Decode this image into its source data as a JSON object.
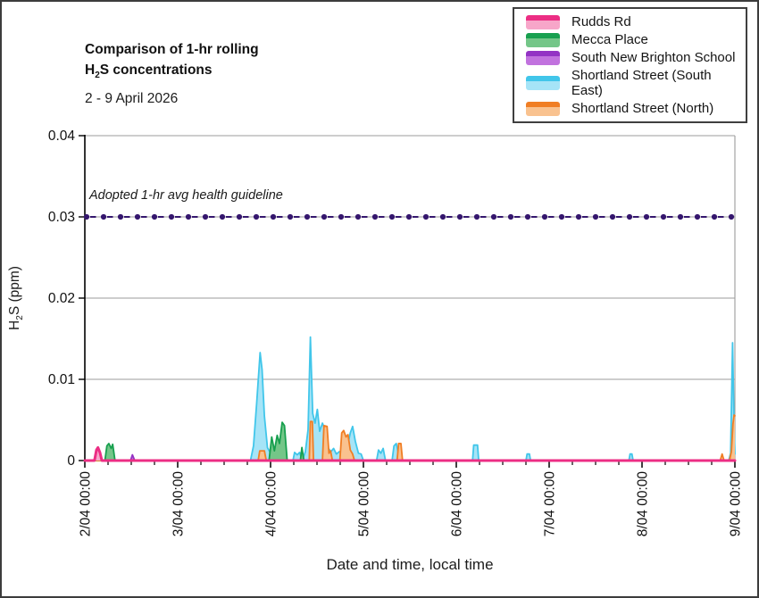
{
  "header": {
    "title_line1": "Comparison of 1-hr rolling",
    "title_line2_pre": "H",
    "title_line2_sub": "2",
    "title_line2_post": "S concentrations",
    "subtitle": "2 - 9 April 2026"
  },
  "chart_data": {
    "type": "area",
    "x_axis": {
      "title": "Date and time, local time",
      "range_hours": [
        0,
        168
      ],
      "major_step_hours": 24,
      "minor_step_hours": 6,
      "ticks": [
        {
          "h": 0,
          "label": "2/04 00:00"
        },
        {
          "h": 24,
          "label": "3/04 00:00"
        },
        {
          "h": 48,
          "label": "4/04 00:00"
        },
        {
          "h": 72,
          "label": "5/04 00:00"
        },
        {
          "h": 96,
          "label": "6/04 00:00"
        },
        {
          "h": 120,
          "label": "7/04 00:00"
        },
        {
          "h": 144,
          "label": "8/04 00:00"
        },
        {
          "h": 168,
          "label": "9/04 00:00"
        }
      ]
    },
    "y_axis": {
      "title_pre": "H",
      "title_sub": "2",
      "title_post": "S (ppm)",
      "range": [
        0,
        0.04
      ],
      "grid": true,
      "grid_color": "#9b9b9b",
      "ticks": [
        {
          "v": 0,
          "label": "0"
        },
        {
          "v": 0.01,
          "label": "0.01"
        },
        {
          "v": 0.02,
          "label": "0.02"
        },
        {
          "v": 0.03,
          "label": "0.03"
        },
        {
          "v": 0.04,
          "label": "0.04"
        }
      ]
    },
    "guideline": {
      "value": 0.03,
      "label": "Adopted 1-hr avg health guideline",
      "color": "#35176E",
      "style": "dashed-with-dot-markers"
    },
    "legend_position": "top-right",
    "series": [
      {
        "name": "Rudds Rd",
        "id": "rudds-rd",
        "line_color": "#EC2E84",
        "fill_color": "#F7A6C9",
        "z": 5,
        "stroke_width": 3,
        "points_h_ppm": [
          [
            0,
            0
          ],
          [
            2.5,
            0
          ],
          [
            3.0,
            0.0013
          ],
          [
            3.4,
            0.0016
          ],
          [
            3.9,
            0.001
          ],
          [
            4.4,
            0
          ],
          [
            168,
            0
          ]
        ]
      },
      {
        "name": "Mecca Place",
        "id": "mecca-place",
        "line_color": "#18A04F",
        "fill_color": "#74C688",
        "z": 3,
        "stroke_width": 1.8,
        "points_h_ppm": [
          [
            0,
            0
          ],
          [
            5.2,
            0
          ],
          [
            5.7,
            0.0018
          ],
          [
            6.2,
            0.0021
          ],
          [
            6.8,
            0.0015
          ],
          [
            7.2,
            0.002
          ],
          [
            7.8,
            0
          ],
          [
            47.6,
            0
          ],
          [
            48.3,
            0.0029
          ],
          [
            49.0,
            0.0012
          ],
          [
            49.7,
            0.0031
          ],
          [
            50.3,
            0.0021
          ],
          [
            51.0,
            0.0047
          ],
          [
            51.6,
            0.0043
          ],
          [
            52.3,
            0
          ],
          [
            55.7,
            0
          ],
          [
            56.1,
            0.0016
          ],
          [
            56.6,
            0
          ],
          [
            168,
            0
          ]
        ]
      },
      {
        "name": "South New Brighton School",
        "id": "south-new-brighton-school",
        "line_color": "#9333C4",
        "fill_color": "#C172DE",
        "z": 1,
        "stroke_width": 1.8,
        "points_h_ppm": [
          [
            0,
            0
          ],
          [
            11.8,
            0
          ],
          [
            12.3,
            0.0007
          ],
          [
            12.9,
            0
          ],
          [
            168,
            0
          ]
        ]
      },
      {
        "name": "Shortland Street (South East)",
        "id": "shortland-street-south-east",
        "line_color": "#41C6EA",
        "fill_color": "#A6E4F7",
        "z": 2,
        "stroke_width": 1.8,
        "points_h_ppm": [
          [
            0,
            0
          ],
          [
            42.8,
            0
          ],
          [
            43.6,
            0.0018
          ],
          [
            44.4,
            0.007
          ],
          [
            45.3,
            0.0133
          ],
          [
            45.8,
            0.0112
          ],
          [
            46.4,
            0.0055
          ],
          [
            47.2,
            0.0016
          ],
          [
            48.0,
            0.0009
          ],
          [
            48.5,
            0.0016
          ],
          [
            49.2,
            0
          ],
          [
            53.8,
            0
          ],
          [
            54.2,
            0.001
          ],
          [
            54.9,
            0.0007
          ],
          [
            55.5,
            0.001
          ],
          [
            56.2,
            0
          ],
          [
            57.0,
            0.0011
          ],
          [
            57.7,
            0.0038
          ],
          [
            58.3,
            0.0152
          ],
          [
            58.9,
            0.0058
          ],
          [
            59.5,
            0.0046
          ],
          [
            60.1,
            0.0063
          ],
          [
            60.7,
            0.0036
          ],
          [
            61.4,
            0.0046
          ],
          [
            62.1,
            0.0038
          ],
          [
            62.8,
            0.0016
          ],
          [
            63.6,
            0.0011
          ],
          [
            64.3,
            0.0015
          ],
          [
            65.0,
            0.0008
          ],
          [
            65.8,
            0.0011
          ],
          [
            66.8,
            0.0008
          ],
          [
            67.8,
            0.0016
          ],
          [
            68.6,
            0.0034
          ],
          [
            69.2,
            0.0042
          ],
          [
            69.9,
            0.0024
          ],
          [
            70.7,
            0.0009
          ],
          [
            71.4,
            0.0008
          ],
          [
            72.0,
            0
          ],
          [
            75.4,
            0
          ],
          [
            75.9,
            0.0013
          ],
          [
            76.5,
            0.0009
          ],
          [
            77.1,
            0.0015
          ],
          [
            77.7,
            0
          ],
          [
            79.4,
            0
          ],
          [
            79.9,
            0.0018
          ],
          [
            80.5,
            0.0021
          ],
          [
            81.1,
            0.0007
          ],
          [
            81.6,
            0
          ],
          [
            100.2,
            0
          ],
          [
            100.5,
            0.0019
          ],
          [
            101.5,
            0.0019
          ],
          [
            101.8,
            0
          ],
          [
            114.0,
            0
          ],
          [
            114.3,
            0.0008
          ],
          [
            114.9,
            0.0008
          ],
          [
            115.2,
            0
          ],
          [
            140.6,
            0
          ],
          [
            140.9,
            0.0008
          ],
          [
            141.4,
            0.0008
          ],
          [
            141.7,
            0
          ],
          [
            166.4,
            0
          ],
          [
            166.9,
            0.0009
          ],
          [
            167.4,
            0.0145
          ],
          [
            167.8,
            0.004
          ],
          [
            168,
            0.0008
          ]
        ]
      },
      {
        "name": "Shortland Street (North)",
        "id": "shortland-street-north",
        "line_color": "#F07E24",
        "fill_color": "#F9C28F",
        "z": 4,
        "stroke_width": 1.8,
        "points_h_ppm": [
          [
            0,
            0
          ],
          [
            44.8,
            0
          ],
          [
            45.2,
            0.0012
          ],
          [
            46.4,
            0.0012
          ],
          [
            46.9,
            0
          ],
          [
            58.0,
            0
          ],
          [
            58.3,
            0.0048
          ],
          [
            58.8,
            0.0048
          ],
          [
            59.1,
            0
          ],
          [
            61.4,
            0
          ],
          [
            61.8,
            0.0043
          ],
          [
            62.6,
            0.0042
          ],
          [
            63.1,
            0.0009
          ],
          [
            63.5,
            0.0012
          ],
          [
            64.0,
            0
          ],
          [
            65.9,
            0
          ],
          [
            66.4,
            0.0034
          ],
          [
            66.9,
            0.0037
          ],
          [
            67.5,
            0.0029
          ],
          [
            68.0,
            0.0032
          ],
          [
            68.6,
            0.0013
          ],
          [
            69.2,
            0.0008
          ],
          [
            69.7,
            0
          ],
          [
            80.7,
            0
          ],
          [
            81.1,
            0.0021
          ],
          [
            81.7,
            0.0021
          ],
          [
            82.1,
            0
          ],
          [
            164.2,
            0
          ],
          [
            164.7,
            0.0008
          ],
          [
            165.2,
            0
          ],
          [
            166.6,
            0
          ],
          [
            167.1,
            0.0011
          ],
          [
            167.5,
            0.0045
          ],
          [
            167.8,
            0.0056
          ],
          [
            168,
            0.0055
          ]
        ]
      }
    ]
  }
}
